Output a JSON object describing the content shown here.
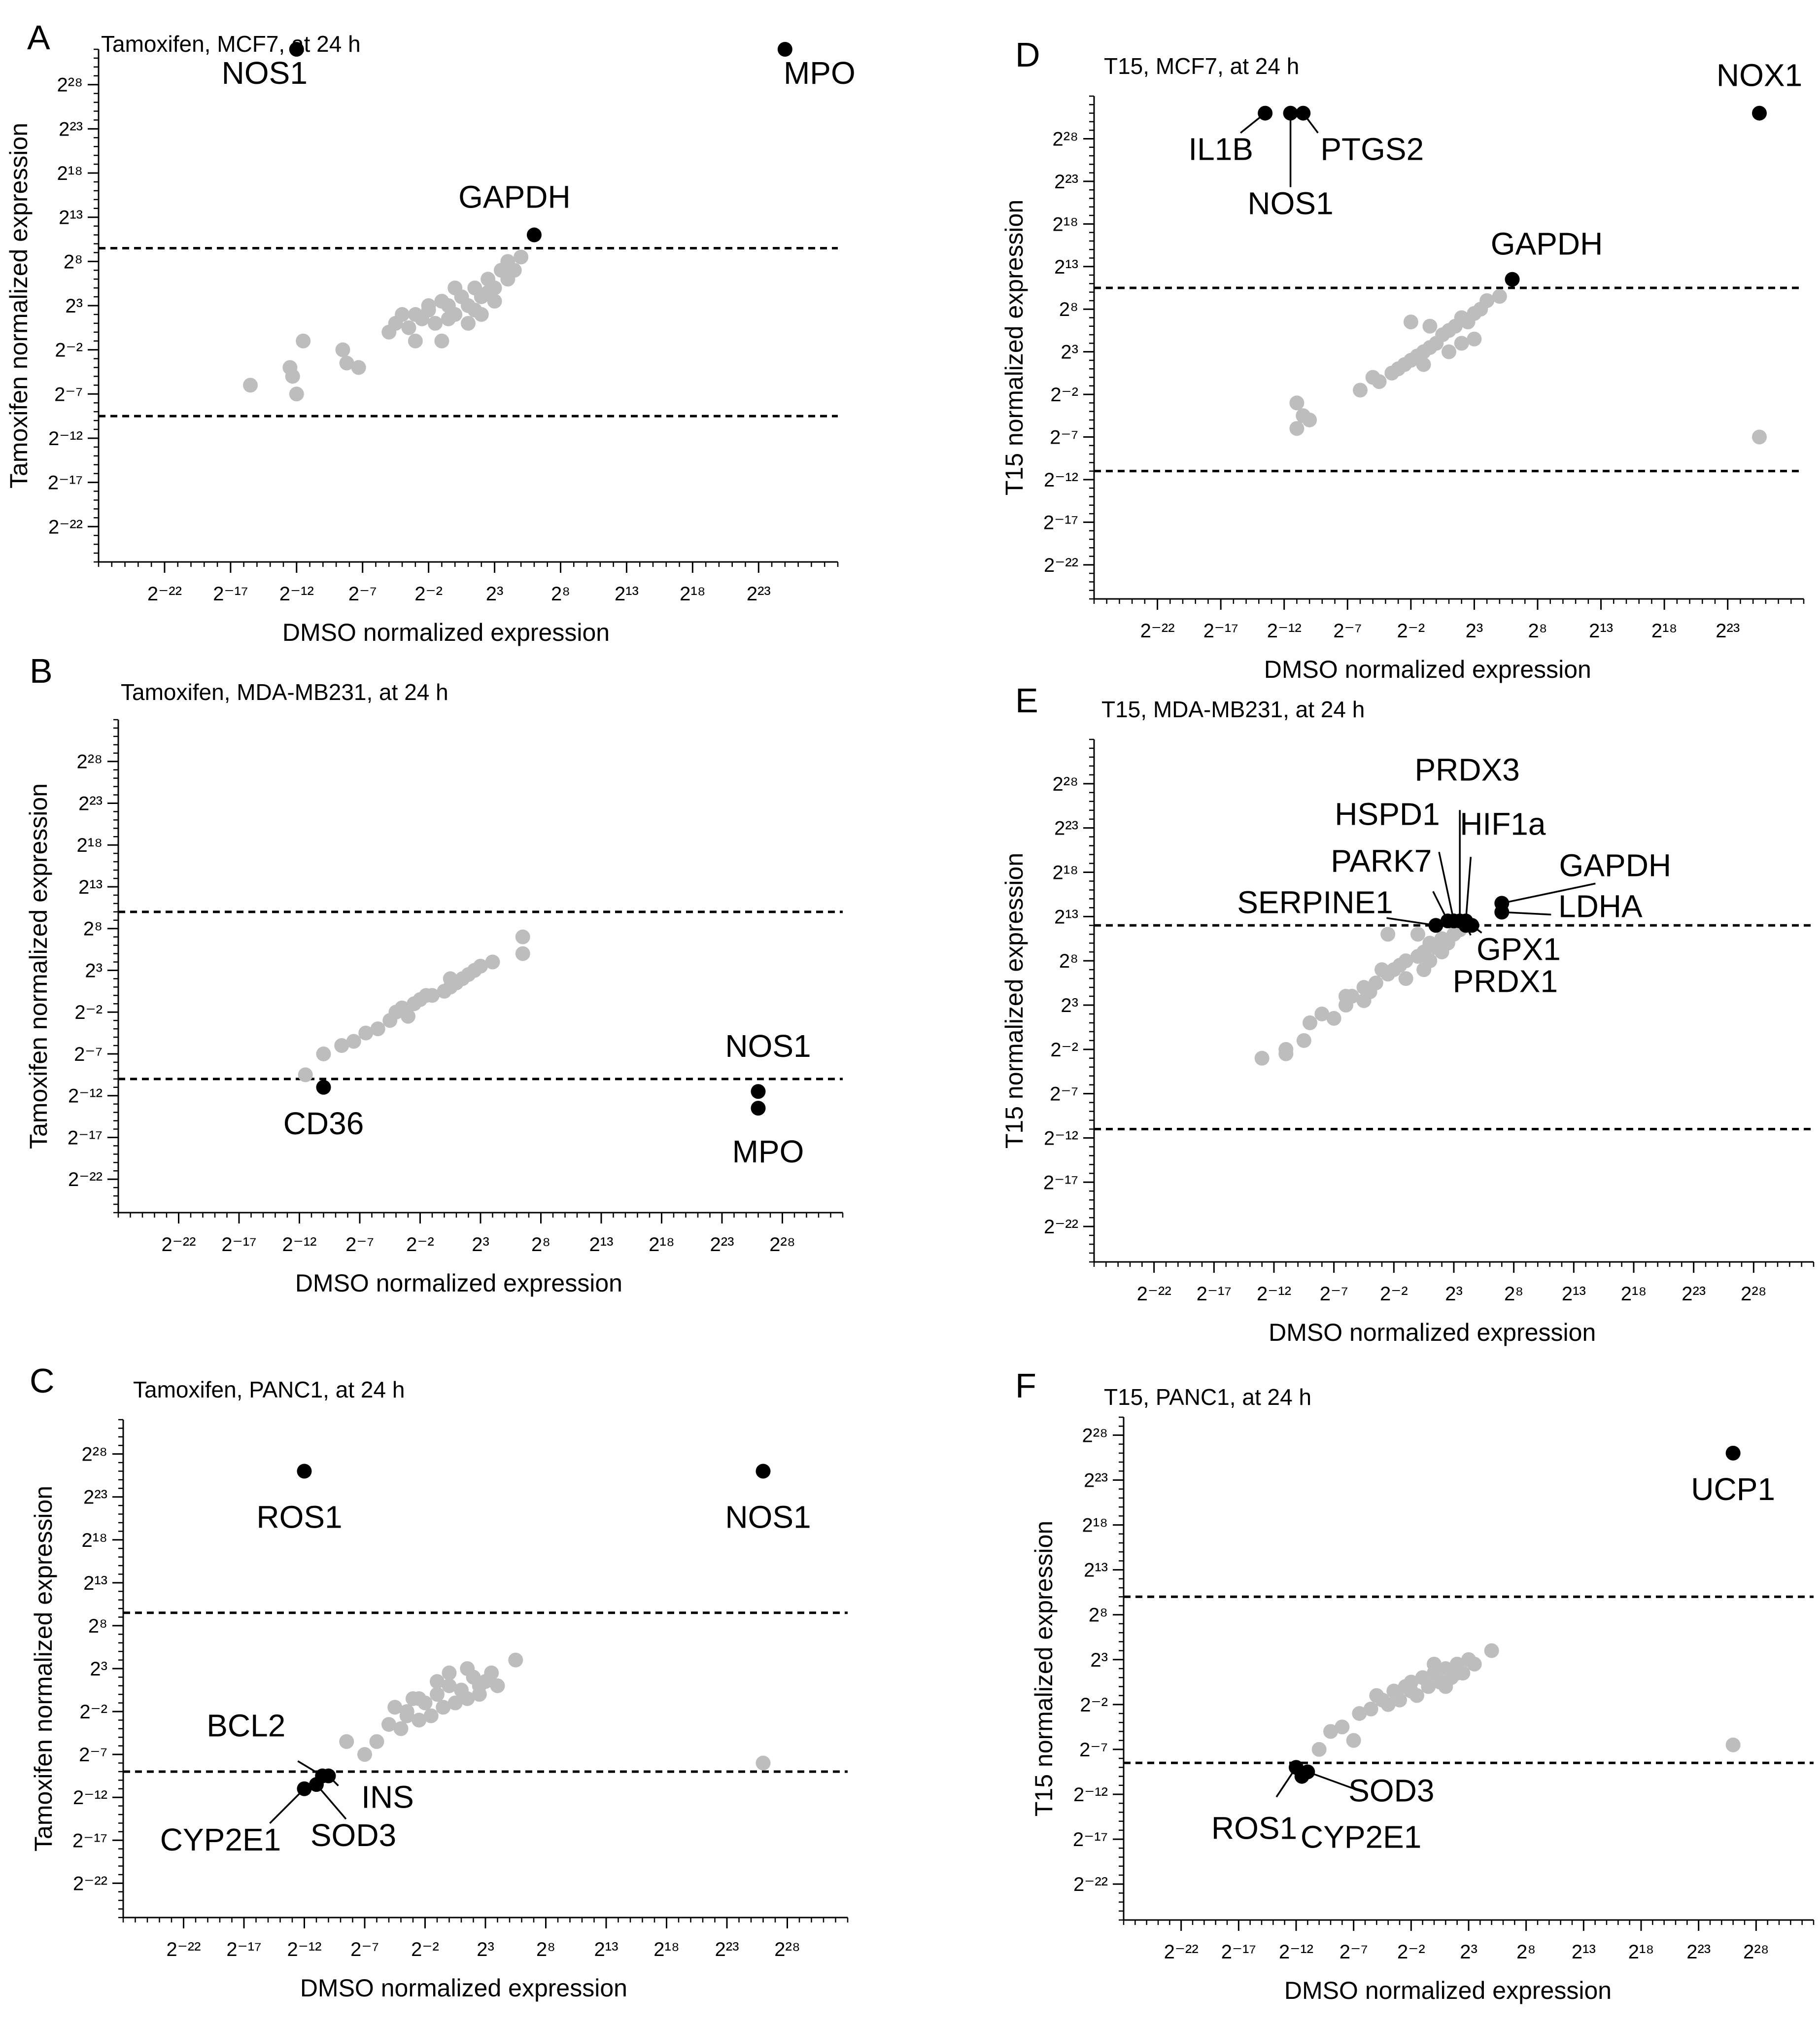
{
  "figure": {
    "panels": [
      "A",
      "B",
      "C",
      "D",
      "E",
      "F"
    ]
  },
  "chart_data": [
    {
      "panel_letter": "A",
      "type": "scatter",
      "title": "Tamoxifen, MCF7, at 24 h",
      "xlabel": "DMSO normalized expression",
      "ylabel": "Tamoxifen normalized expression",
      "log_scale": "log2",
      "xlim": [
        -27,
        29
      ],
      "ylim": [
        -26,
        32
      ],
      "tick_exponents": [
        -22,
        -17,
        -12,
        -7,
        -2,
        3,
        8,
        13,
        18,
        23
      ],
      "y_tick_exponents": [
        -22,
        -17,
        -12,
        -7,
        -2,
        3,
        8,
        13,
        18,
        23,
        28
      ],
      "x_tick_labels": [
        "2⁻²²",
        "2⁻¹⁷",
        "2⁻¹²",
        "2⁻⁷",
        "2⁻²",
        "2³",
        "2⁸",
        "2¹³",
        "2¹⁸",
        "2²³"
      ],
      "y_tick_labels": [
        "2⁻²²",
        "2⁻¹⁷",
        "2⁻¹²",
        "2⁻⁷",
        "2⁻²",
        "2³",
        "2⁸",
        "2¹³",
        "2¹⁸",
        "2²³",
        "2²⁸"
      ],
      "thresholds": [
        9.5,
        -9.5
      ],
      "gray_points": [
        [
          -15.5,
          -6
        ],
        [
          -12.5,
          -4
        ],
        [
          -12.3,
          -5
        ],
        [
          -12,
          -7
        ],
        [
          -11.5,
          -1
        ],
        [
          -8.5,
          -2
        ],
        [
          -8.2,
          -3.5
        ],
        [
          -7.3,
          -4
        ],
        [
          -5,
          0
        ],
        [
          -4.5,
          1
        ],
        [
          -4,
          2
        ],
        [
          -3.5,
          0.5
        ],
        [
          -3,
          -1
        ],
        [
          -2.5,
          1.5
        ],
        [
          -2,
          2.5
        ],
        [
          -1.5,
          1
        ],
        [
          -1,
          -1
        ],
        [
          -0.5,
          3
        ],
        [
          0,
          2
        ],
        [
          0.5,
          4
        ],
        [
          1,
          3
        ],
        [
          1.5,
          5
        ],
        [
          2,
          4
        ],
        [
          2.5,
          6
        ],
        [
          3,
          5
        ],
        [
          3.5,
          7
        ],
        [
          4,
          8
        ],
        [
          4.5,
          7
        ],
        [
          5,
          8.5
        ],
        [
          1,
          1
        ],
        [
          -1,
          3.5
        ],
        [
          0,
          5
        ],
        [
          2,
          2
        ],
        [
          3,
          3.5
        ],
        [
          -2,
          3
        ],
        [
          -3,
          2
        ],
        [
          4,
          6
        ],
        [
          2.5,
          4.5
        ],
        [
          1.5,
          2.5
        ],
        [
          -0.5,
          1.5
        ]
      ],
      "highlight_points": [
        {
          "gene": "NOS1",
          "x": -12,
          "y": 32
        },
        {
          "gene": "MPO",
          "x": 25,
          "y": 32
        },
        {
          "gene": "GAPDH",
          "x": 6,
          "y": 11
        }
      ],
      "labels": [
        "NOS1",
        "MPO",
        "GAPDH"
      ]
    },
    {
      "panel_letter": "B",
      "type": "scatter",
      "title": "Tamoxifen, MDA-MB231, at 24 h",
      "xlabel": "DMSO normalized expression",
      "ylabel": "Tamoxifen normalized expression",
      "log_scale": "log2",
      "xlim": [
        -27,
        33
      ],
      "ylim": [
        -26,
        33
      ],
      "tick_exponents": [
        -22,
        -17,
        -12,
        -7,
        -2,
        3,
        8,
        13,
        18,
        23,
        28
      ],
      "y_tick_exponents": [
        -22,
        -17,
        -12,
        -7,
        -2,
        3,
        8,
        13,
        18,
        23,
        28
      ],
      "x_tick_labels": [
        "2⁻²²",
        "2⁻¹⁷",
        "2⁻¹²",
        "2⁻⁷",
        "2⁻²",
        "2³",
        "2⁸",
        "2¹³",
        "2¹⁸",
        "2²³",
        "2²⁸"
      ],
      "y_tick_labels": [
        "2⁻²²",
        "2⁻¹⁷",
        "2⁻¹²",
        "2⁻⁷",
        "2⁻²",
        "2³",
        "2⁸",
        "2¹³",
        "2¹⁸",
        "2²³",
        "2²⁸"
      ],
      "thresholds": [
        10,
        -10
      ],
      "gray_points": [
        [
          -11.5,
          -9.5
        ],
        [
          -10,
          -7
        ],
        [
          -8.5,
          -6
        ],
        [
          -7.5,
          -5.5
        ],
        [
          -6.5,
          -4.5
        ],
        [
          -5.5,
          -4
        ],
        [
          -4.5,
          -3
        ],
        [
          -4,
          -2
        ],
        [
          -3,
          -2.5
        ],
        [
          -2.5,
          -1
        ],
        [
          -2,
          -0.5
        ],
        [
          -1,
          0
        ],
        [
          0,
          0.5
        ],
        [
          0.5,
          1
        ],
        [
          1,
          1.5
        ],
        [
          1.5,
          2
        ],
        [
          2,
          2.5
        ],
        [
          2.5,
          3
        ],
        [
          3,
          3.5
        ],
        [
          4,
          4
        ],
        [
          6.5,
          5
        ],
        [
          6.5,
          7
        ],
        [
          -1.5,
          0
        ],
        [
          0.5,
          2
        ],
        [
          -3.5,
          -1.5
        ]
      ],
      "highlight_points": [
        {
          "gene": "CD36",
          "x": -10,
          "y": -11
        },
        {
          "gene": "NOS1",
          "x": 26,
          "y": -11.5
        },
        {
          "gene": "MPO",
          "x": 26,
          "y": -13.5
        }
      ],
      "labels": [
        "CD36",
        "NOS1",
        "MPO"
      ]
    },
    {
      "panel_letter": "C",
      "type": "scatter",
      "title": "Tamoxifen, PANC1, at 24 h",
      "xlabel": "DMSO normalized expression",
      "ylabel": "Tamoxifen normalized expression",
      "log_scale": "log2",
      "xlim": [
        -27,
        33
      ],
      "ylim": [
        -26,
        32
      ],
      "tick_exponents": [
        -22,
        -17,
        -12,
        -7,
        -2,
        3,
        8,
        13,
        18,
        23,
        28
      ],
      "y_tick_exponents": [
        -22,
        -17,
        -12,
        -7,
        -2,
        3,
        8,
        13,
        18,
        23,
        28
      ],
      "x_tick_labels": [
        "2⁻²²",
        "2⁻¹⁷",
        "2⁻¹²",
        "2⁻⁷",
        "2⁻²",
        "2³",
        "2⁸",
        "2¹³",
        "2¹⁸",
        "2²³",
        "2²⁸"
      ],
      "y_tick_labels": [
        "2⁻²²",
        "2⁻¹⁷",
        "2⁻¹²",
        "2⁻⁷",
        "2⁻²",
        "2³",
        "2⁸",
        "2¹³",
        "2¹⁸",
        "2²³",
        "2²⁸"
      ],
      "thresholds": [
        9.5,
        -9
      ],
      "gray_points": [
        [
          -8.5,
          -5.5
        ],
        [
          -7,
          -7
        ],
        [
          -6,
          -5.5
        ],
        [
          -5,
          -3.5
        ],
        [
          -4.5,
          -1.5
        ],
        [
          -4,
          -4
        ],
        [
          -3.5,
          -2.5
        ],
        [
          -3,
          -0.5
        ],
        [
          -2.5,
          -3
        ],
        [
          -2,
          -1
        ],
        [
          -1.5,
          -2.5
        ],
        [
          -1,
          0
        ],
        [
          -0.5,
          -1.5
        ],
        [
          0,
          1
        ],
        [
          0.5,
          -1
        ],
        [
          1,
          0.5
        ],
        [
          1.5,
          -0.5
        ],
        [
          2,
          2
        ],
        [
          2.5,
          0
        ],
        [
          3,
          1.5
        ],
        [
          3.5,
          2.5
        ],
        [
          4,
          1
        ],
        [
          5.5,
          4
        ],
        [
          0,
          2.5
        ],
        [
          -1,
          1.5
        ],
        [
          1.5,
          3
        ],
        [
          -2.5,
          -0.5
        ],
        [
          2.5,
          1
        ],
        [
          -3.5,
          -2
        ],
        [
          26,
          -8
        ]
      ],
      "highlight_points": [
        {
          "gene": "ROS1",
          "x": -12,
          "y": 26
        },
        {
          "gene": "NOS1",
          "x": 26,
          "y": 26
        },
        {
          "gene": "BCL2",
          "x": -10.5,
          "y": -9.5
        },
        {
          "gene": "INS",
          "x": -10,
          "y": -9.5
        },
        {
          "gene": "CYP2E1",
          "x": -12,
          "y": -11
        },
        {
          "gene": "SOD3",
          "x": -11,
          "y": -10.5
        }
      ],
      "labels": [
        "ROS1",
        "NOS1",
        "BCL2",
        "INS",
        "CYP2E1",
        "SOD3"
      ]
    },
    {
      "panel_letter": "D",
      "type": "scatter",
      "title": "T15, MCF7, at 24 h",
      "xlabel": "DMSO normalized expression",
      "ylabel": "T15 normalized expression",
      "log_scale": "log2",
      "xlim": [
        -27,
        29
      ],
      "ylim": [
        -26,
        33
      ],
      "tick_exponents": [
        -22,
        -17,
        -12,
        -7,
        -2,
        3,
        8,
        13,
        18,
        23
      ],
      "y_tick_exponents": [
        -22,
        -17,
        -12,
        -7,
        -2,
        3,
        8,
        13,
        18,
        23,
        28
      ],
      "x_tick_labels": [
        "2⁻²²",
        "2⁻¹⁷",
        "2⁻¹²",
        "2⁻⁷",
        "2⁻²",
        "2³",
        "2⁸",
        "2¹³",
        "2¹⁸",
        "2²³"
      ],
      "y_tick_labels": [
        "2⁻²²",
        "2⁻¹⁷",
        "2⁻¹²",
        "2⁻⁷",
        "2⁻²",
        "2³",
        "2⁸",
        "2¹³",
        "2¹⁸",
        "2²³",
        "2²⁸"
      ],
      "thresholds": [
        10.5,
        -11
      ],
      "gray_points": [
        [
          -11,
          -3
        ],
        [
          -10.5,
          -4.5
        ],
        [
          -11,
          -6
        ],
        [
          -10,
          -5
        ],
        [
          -6,
          -1.5
        ],
        [
          -5,
          0
        ],
        [
          -4.5,
          -0.5
        ],
        [
          -3.5,
          0.5
        ],
        [
          -3,
          1
        ],
        [
          -2.5,
          1.5
        ],
        [
          -2,
          2
        ],
        [
          -1.5,
          2.5
        ],
        [
          -1,
          3
        ],
        [
          -0.5,
          3.5
        ],
        [
          0,
          4
        ],
        [
          0.5,
          5
        ],
        [
          1,
          5.5
        ],
        [
          1.5,
          6
        ],
        [
          2,
          7
        ],
        [
          2.5,
          6.5
        ],
        [
          3,
          7.5
        ],
        [
          3.5,
          8
        ],
        [
          4,
          9
        ],
        [
          5,
          9.5
        ],
        [
          -2,
          6.5
        ],
        [
          -0.5,
          6
        ],
        [
          2,
          4
        ],
        [
          3,
          4.5
        ],
        [
          -1,
          1.5
        ],
        [
          1,
          3
        ],
        [
          25.5,
          -7
        ]
      ],
      "highlight_points": [
        {
          "gene": "IL1B",
          "x": -13.5,
          "y": 31
        },
        {
          "gene": "NOS1",
          "x": -11.5,
          "y": 31
        },
        {
          "gene": "PTGS2",
          "x": -10.5,
          "y": 31
        },
        {
          "gene": "NOX1",
          "x": 25.5,
          "y": 31
        },
        {
          "gene": "GAPDH",
          "x": 6,
          "y": 11.5
        }
      ],
      "labels": [
        "IL1B",
        "NOS1",
        "PTGS2",
        "NOX1",
        "GAPDH"
      ]
    },
    {
      "panel_letter": "E",
      "type": "scatter",
      "title": "T15, MDA-MB231, at 24 h",
      "xlabel": "DMSO normalized expression",
      "ylabel": "T15 normalized expression",
      "log_scale": "log2",
      "xlim": [
        -27,
        33
      ],
      "ylim": [
        -26,
        33
      ],
      "tick_exponents": [
        -22,
        -17,
        -12,
        -7,
        -2,
        3,
        8,
        13,
        18,
        23,
        28
      ],
      "y_tick_exponents": [
        -22,
        -17,
        -12,
        -7,
        -2,
        3,
        8,
        13,
        18,
        23,
        28
      ],
      "x_tick_labels": [
        "2⁻²²",
        "2⁻¹⁷",
        "2⁻¹²",
        "2⁻⁷",
        "2⁻²",
        "2³",
        "2⁸",
        "2¹³",
        "2¹⁸",
        "2²³",
        "2²⁸"
      ],
      "y_tick_labels": [
        "2⁻²²",
        "2⁻¹⁷",
        "2⁻¹²",
        "2⁻⁷",
        "2⁻²",
        "2³",
        "2⁸",
        "2¹³",
        "2¹⁸",
        "2²³",
        "2²⁸"
      ],
      "thresholds": [
        12,
        -11
      ],
      "gray_points": [
        [
          -13,
          -3
        ],
        [
          -11,
          -2.5
        ],
        [
          -9.5,
          -1
        ],
        [
          -9,
          1
        ],
        [
          -8,
          2
        ],
        [
          -7,
          1.5
        ],
        [
          -6,
          3
        ],
        [
          -5.5,
          4
        ],
        [
          -4.5,
          5
        ],
        [
          -4,
          4.5
        ],
        [
          -3.5,
          5.5
        ],
        [
          -2.5,
          6.5
        ],
        [
          -2,
          7
        ],
        [
          -1.5,
          7.5
        ],
        [
          -1,
          8
        ],
        [
          0,
          8.5
        ],
        [
          0.5,
          9
        ],
        [
          1,
          10
        ],
        [
          1.5,
          9.5
        ],
        [
          2,
          10.5
        ],
        [
          2.5,
          10
        ],
        [
          3,
          11
        ],
        [
          3.5,
          11.5
        ],
        [
          0,
          11
        ],
        [
          -3,
          7
        ],
        [
          -1,
          6
        ],
        [
          1,
          8
        ],
        [
          2,
          9
        ],
        [
          -2.5,
          11
        ],
        [
          -6,
          4
        ],
        [
          -11,
          -2
        ],
        [
          -4.5,
          3.5
        ],
        [
          0.5,
          7
        ]
      ],
      "highlight_points": [
        {
          "gene": "SERPINE1",
          "x": 1.5,
          "y": 12
        },
        {
          "gene": "PARK7",
          "x": 2.5,
          "y": 12.5
        },
        {
          "gene": "HSPD1",
          "x": 3,
          "y": 12.5
        },
        {
          "gene": "PRDX3",
          "x": 3.5,
          "y": 12.5
        },
        {
          "gene": "HIF1a",
          "x": 4,
          "y": 12.5
        },
        {
          "gene": "GPX1",
          "x": 4.5,
          "y": 12
        },
        {
          "gene": "PRDX1",
          "x": 4,
          "y": 12
        },
        {
          "gene": "GAPDH",
          "x": 7,
          "y": 14.5
        },
        {
          "gene": "LDHA",
          "x": 7,
          "y": 13.5
        }
      ],
      "labels": [
        "PRDX3",
        "HSPD1",
        "HIF1a",
        "PARK7",
        "GAPDH",
        "SERPINE1",
        "LDHA",
        "GPX1",
        "PRDX1"
      ]
    },
    {
      "panel_letter": "F",
      "type": "scatter",
      "title": "T15, PANC1, at 24 h",
      "xlabel": "DMSO normalized expression",
      "ylabel": "T15 normalized expression",
      "log_scale": "log2",
      "xlim": [
        -27,
        33
      ],
      "ylim": [
        -26,
        30
      ],
      "tick_exponents": [
        -22,
        -17,
        -12,
        -7,
        -2,
        3,
        8,
        13,
        18,
        23,
        28
      ],
      "y_tick_exponents": [
        -22,
        -17,
        -12,
        -7,
        -2,
        3,
        8,
        13,
        18,
        23,
        28
      ],
      "x_tick_labels": [
        "2⁻²²",
        "2⁻¹⁷",
        "2⁻¹²",
        "2⁻⁷",
        "2⁻²",
        "2³",
        "2⁸",
        "2¹³",
        "2¹⁸",
        "2²³",
        "2²⁸"
      ],
      "y_tick_labels": [
        "2⁻²²",
        "2⁻¹⁷",
        "2⁻¹²",
        "2⁻⁷",
        "2⁻²",
        "2³",
        "2⁸",
        "2¹³",
        "2¹⁸",
        "2²³",
        "2²⁸"
      ],
      "thresholds": [
        10,
        -8.5
      ],
      "gray_points": [
        [
          -10,
          -7
        ],
        [
          -9,
          -5
        ],
        [
          -8,
          -4.5
        ],
        [
          -7,
          -6
        ],
        [
          -6.5,
          -3
        ],
        [
          -5.5,
          -2.5
        ],
        [
          -5,
          -1
        ],
        [
          -4,
          -2
        ],
        [
          -3.5,
          -0.5
        ],
        [
          -3,
          -1.5
        ],
        [
          -2.5,
          0
        ],
        [
          -2,
          0.5
        ],
        [
          -1.5,
          -1
        ],
        [
          -1,
          1
        ],
        [
          -0.5,
          0
        ],
        [
          0,
          1.5
        ],
        [
          0.5,
          0.5
        ],
        [
          1,
          2
        ],
        [
          1.5,
          1
        ],
        [
          2,
          2.5
        ],
        [
          2.5,
          1.5
        ],
        [
          3,
          3
        ],
        [
          3.5,
          2.5
        ],
        [
          5,
          4
        ],
        [
          -2,
          -0.5
        ],
        [
          0,
          2.5
        ],
        [
          1,
          0
        ],
        [
          -4.5,
          -1.5
        ],
        [
          2,
          1.5
        ],
        [
          26,
          -6.5
        ]
      ],
      "highlight_points": [
        {
          "gene": "UCP1",
          "x": 26,
          "y": 26
        },
        {
          "gene": "ROS1",
          "x": -12,
          "y": -9
        },
        {
          "gene": "CYP2E1",
          "x": -11.5,
          "y": -10
        },
        {
          "gene": "SOD3",
          "x": -11,
          "y": -9.5
        }
      ],
      "labels": [
        "UCP1",
        "ROS1",
        "CYP2E1",
        "SOD3"
      ]
    }
  ]
}
